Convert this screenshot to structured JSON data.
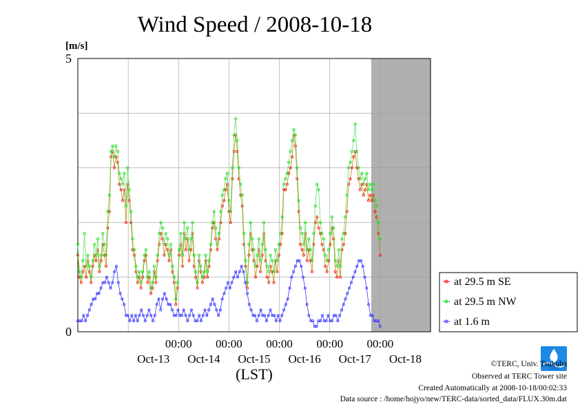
{
  "chart_data": {
    "type": "line",
    "title": "Wind Speed / 2008-10-18",
    "ylabel": "[m/s]",
    "xlabel": "(LST)",
    "ylim": [
      0,
      5
    ],
    "yticks": [
      "0",
      "5"
    ],
    "x_time_labels": [
      "00:00",
      "00:00",
      "00:00",
      "00:00",
      "00:00"
    ],
    "x_date_labels": [
      "Oct-13",
      "Oct-14",
      "Oct-15",
      "Oct-16",
      "Oct-17",
      "Oct-18"
    ],
    "x_range_days": [
      -1,
      5
    ],
    "shaded_region_days": [
      5,
      6
    ],
    "grid": true,
    "legend_position": "right",
    "series": [
      {
        "name": "at 29.5 m SE",
        "color": "#ff0000",
        "line_color": "#b8860b",
        "values": [
          1.4,
          1.0,
          0.9,
          1.1,
          1.2,
          1.0,
          1.3,
          1.1,
          0.9,
          1.2,
          1.4,
          1.3,
          1.5,
          1.1,
          1.3,
          1.6,
          1.4,
          1.2,
          1.9,
          2.2,
          3.2,
          3.3,
          3.0,
          3.2,
          3.1,
          2.7,
          2.6,
          2.4,
          2.6,
          2.0,
          2.7,
          2.4,
          2.0,
          1.5,
          1.4,
          1.1,
          0.9,
          1.0,
          0.8,
          1.0,
          1.3,
          1.4,
          0.9,
          1.0,
          0.7,
          0.8,
          1.1,
          0.9,
          1.3,
          1.6,
          1.8,
          1.7,
          1.4,
          1.6,
          1.5,
          1.3,
          1.5,
          1.1,
          0.9,
          0.5,
          0.8,
          1.4,
          1.6,
          1.2,
          1.8,
          1.5,
          1.7,
          1.3,
          1.5,
          1.8,
          1.2,
          1.0,
          0.8,
          1.3,
          1.1,
          0.9,
          1.0,
          1.3,
          1.0,
          1.2,
          1.5,
          1.9,
          2.0,
          1.7,
          1.5,
          1.7,
          2.0,
          2.3,
          2.4,
          2.6,
          2.7,
          2.2,
          2.0,
          2.8,
          3.3,
          3.6,
          3.3,
          2.8,
          2.5,
          2.3,
          1.6,
          1.2,
          0.8,
          1.4,
          1.8,
          1.5,
          1.3,
          1.0,
          1.2,
          1.5,
          1.1,
          1.4,
          1.8,
          1.3,
          1.0,
          0.9,
          1.2,
          1.1,
          0.9,
          1.3,
          1.1,
          1.4,
          1.6,
          1.8,
          2.6,
          2.6,
          2.7,
          2.9,
          3.0,
          3.2,
          3.6,
          3.4,
          2.8,
          2.2,
          1.6,
          1.5,
          1.4,
          1.8,
          1.3,
          1.5,
          1.3,
          1.1,
          1.6,
          2.0,
          2.1,
          1.9,
          1.8,
          1.6,
          1.5,
          1.2,
          1.1,
          1.3,
          1.6,
          1.9,
          1.7,
          1.1,
          1.0,
          1.3,
          1.0,
          1.5,
          1.6,
          1.8,
          2.2,
          2.7,
          2.8,
          3.0,
          3.2,
          3.3,
          3.0,
          2.8,
          2.6,
          2.7,
          2.5,
          2.6,
          2.7,
          2.4,
          2.5,
          2.4,
          2.5,
          2.2,
          2.1,
          1.8,
          1.4
        ]
      },
      {
        "name": "at 29.5 m NW",
        "color": "#00dd00",
        "line_color": "#66dd66",
        "values": [
          1.6,
          1.1,
          1.0,
          1.3,
          1.8,
          1.2,
          1.4,
          1.2,
          1.0,
          1.3,
          1.6,
          1.4,
          1.7,
          1.2,
          1.4,
          1.8,
          1.6,
          1.4,
          2.2,
          2.5,
          3.3,
          3.4,
          3.2,
          3.4,
          3.3,
          2.9,
          2.8,
          2.7,
          2.9,
          2.3,
          3.0,
          2.6,
          2.2,
          1.7,
          1.5,
          1.2,
          1.0,
          1.1,
          0.9,
          1.1,
          1.4,
          1.5,
          1.0,
          1.1,
          0.8,
          0.9,
          1.2,
          1.0,
          1.4,
          1.8,
          2.0,
          1.9,
          1.6,
          1.8,
          1.7,
          1.4,
          1.6,
          1.2,
          1.0,
          0.6,
          0.9,
          1.5,
          1.8,
          1.4,
          2.0,
          1.7,
          1.9,
          1.5,
          1.7,
          2.0,
          1.4,
          1.1,
          0.9,
          1.4,
          1.2,
          1.0,
          1.1,
          1.4,
          1.1,
          1.3,
          1.6,
          2.0,
          2.2,
          1.9,
          1.6,
          1.8,
          2.2,
          2.5,
          2.6,
          2.8,
          2.9,
          2.4,
          2.2,
          3.0,
          3.6,
          3.9,
          3.5,
          3.0,
          2.7,
          2.5,
          1.8,
          1.3,
          0.9,
          1.6,
          2.0,
          1.7,
          1.5,
          1.2,
          1.4,
          1.7,
          1.3,
          1.6,
          2.0,
          1.5,
          1.2,
          1.1,
          1.4,
          1.3,
          1.1,
          1.5,
          1.3,
          1.6,
          1.8,
          2.1,
          2.7,
          2.8,
          2.9,
          3.1,
          3.3,
          3.5,
          3.7,
          3.6,
          3.0,
          2.4,
          1.9,
          1.8,
          1.6,
          2.0,
          1.5,
          1.7,
          1.5,
          1.3,
          1.8,
          2.3,
          2.7,
          2.6,
          2.0,
          1.8,
          1.7,
          1.4,
          1.3,
          1.5,
          1.8,
          2.1,
          1.9,
          1.3,
          1.2,
          1.5,
          1.2,
          1.7,
          1.8,
          2.1,
          2.5,
          3.0,
          3.1,
          3.3,
          3.5,
          3.8,
          3.3,
          3.0,
          2.8,
          2.9,
          2.7,
          2.8,
          2.9,
          2.6,
          2.7,
          2.6,
          2.7,
          2.4,
          2.3,
          2.0,
          1.7
        ]
      },
      {
        "name": "at 1.6 m",
        "color": "#3333ff",
        "line_color": "#3333ff",
        "values": [
          0.2,
          0.2,
          0.2,
          0.3,
          0.2,
          0.3,
          0.4,
          0.5,
          0.6,
          0.6,
          0.7,
          0.7,
          0.8,
          0.9,
          0.9,
          1.0,
          0.9,
          0.8,
          0.9,
          1.1,
          1.2,
          0.9,
          0.7,
          0.6,
          0.5,
          0.3,
          0.3,
          0.2,
          0.3,
          0.2,
          0.3,
          0.2,
          0.3,
          0.4,
          0.3,
          0.2,
          0.3,
          0.4,
          0.3,
          0.2,
          0.3,
          0.5,
          0.6,
          0.4,
          0.6,
          0.7,
          0.6,
          0.5,
          0.5,
          0.4,
          0.3,
          0.3,
          0.4,
          0.3,
          0.3,
          0.4,
          0.3,
          0.2,
          0.3,
          0.4,
          0.3,
          0.2,
          0.2,
          0.3,
          0.2,
          0.3,
          0.4,
          0.3,
          0.4,
          0.5,
          0.6,
          0.5,
          0.4,
          0.3,
          0.4,
          0.6,
          0.7,
          0.8,
          0.9,
          0.8,
          0.9,
          1.0,
          1.1,
          1.0,
          1.1,
          1.2,
          1.1,
          0.9,
          0.7,
          0.5,
          0.4,
          0.3,
          0.3,
          0.2,
          0.3,
          0.4,
          0.3,
          0.3,
          0.2,
          0.3,
          0.4,
          0.3,
          0.3,
          0.2,
          0.3,
          0.2,
          0.3,
          0.4,
          0.5,
          0.6,
          0.8,
          1.0,
          1.1,
          1.2,
          1.3,
          1.3,
          1.2,
          1.0,
          0.8,
          0.5,
          0.3,
          0.2,
          0.2,
          0.1,
          0.1,
          0.2,
          0.2,
          0.3,
          0.2,
          0.2,
          0.3,
          0.2,
          0.2,
          0.3,
          0.3,
          0.2,
          0.3,
          0.4,
          0.5,
          0.6,
          0.7,
          0.8,
          0.9,
          1.0,
          1.1,
          1.2,
          1.3,
          1.3,
          1.2,
          1.0,
          0.8,
          0.5,
          0.3,
          0.3,
          0.2,
          0.2,
          0.2,
          0.1
        ]
      }
    ]
  },
  "logo": {
    "name": "terc-logo-icon",
    "text": "TERC"
  },
  "footer": {
    "copyright": "©TERC, Univ. Tsukuba",
    "observed": "Observed at TERC Tower site",
    "created": "Created Automatically at 2008-10-18/00:02:33",
    "source": "Data source : /home/hojyo/new/TERC-data/sorted_data/FLUX.30m.dat"
  }
}
